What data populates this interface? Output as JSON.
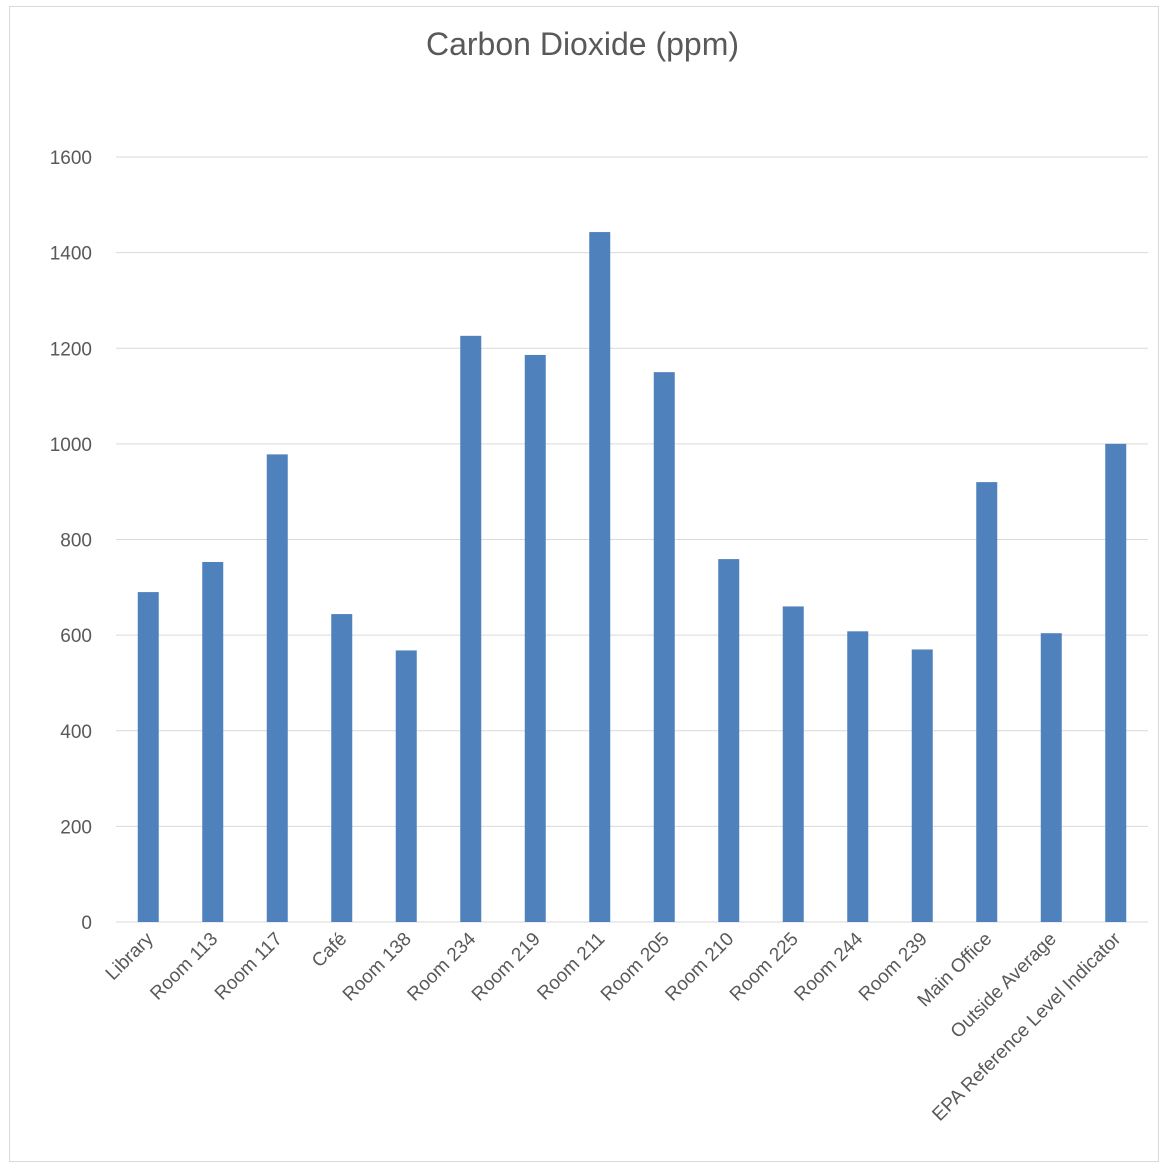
{
  "chart_data": {
    "type": "bar",
    "title": "Carbon Dioxide (ppm)",
    "xlabel": "",
    "ylabel": "",
    "ylim": [
      0,
      1600
    ],
    "yticks": [
      0,
      200,
      400,
      600,
      800,
      1000,
      1200,
      1400,
      1600
    ],
    "grid": true,
    "bar_color": "#4f81bd",
    "categories": [
      "Library",
      "Room 113",
      "Room 117",
      "Café",
      "Room 138",
      "Room 234",
      "Room 219",
      "Room 211",
      "Room 205",
      "Room 210",
      "Room 225",
      "Room 244",
      "Room 239",
      "Main Office",
      "Outside Average",
      "EPA Reference Level Indicator"
    ],
    "values": [
      690,
      753,
      978,
      644,
      568,
      1226,
      1186,
      1443,
      1150,
      759,
      660,
      608,
      570,
      920,
      604,
      1000
    ]
  }
}
